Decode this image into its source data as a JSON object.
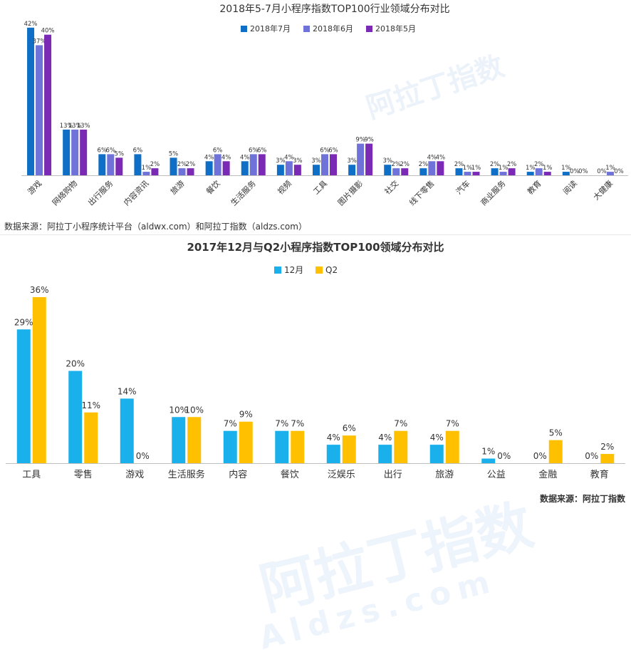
{
  "watermark": {
    "text": "阿拉丁指数",
    "domain": "Aldzs.com"
  },
  "chart_data": [
    {
      "type": "bar",
      "title": "2018年5-7月小程序指数TOP100行业领域分布对比",
      "categories": [
        "游戏",
        "网络购物",
        "出行服务",
        "内容资讯",
        "旅游",
        "餐饮",
        "生活服务",
        "视频",
        "工具",
        "图片摄影",
        "社交",
        "线下零售",
        "汽车",
        "商业服务",
        "教育",
        "阅读",
        "大健康"
      ],
      "series": [
        {
          "name": "2018年7月",
          "color": "#0f6fc6",
          "values": [
            42,
            13,
            6,
            6,
            5,
            4,
            4,
            3,
            3,
            3,
            3,
            2,
            2,
            2,
            1,
            1,
            0
          ]
        },
        {
          "name": "2018年6月",
          "color": "#6f72d9",
          "values": [
            37,
            13,
            6,
            1,
            2,
            6,
            6,
            4,
            6,
            9,
            2,
            4,
            1,
            1,
            2,
            0,
            1
          ]
        },
        {
          "name": "2018年5月",
          "color": "#7a2ab5",
          "values": [
            40,
            13,
            5,
            2,
            2,
            4,
            6,
            3,
            6,
            9,
            2,
            4,
            1,
            2,
            1,
            0,
            0
          ]
        }
      ],
      "value_suffix": "%",
      "legend_position": "top-center",
      "ylim": [
        0,
        45
      ],
      "grid": false,
      "source": "数据来源：阿拉丁小程序统计平台（aldwx.com）和阿拉丁指数（aldzs.com）"
    },
    {
      "type": "bar",
      "title": "2017年12月与Q2小程序指数TOP100领域分布对比",
      "categories": [
        "工具",
        "零售",
        "游戏",
        "生活服务",
        "内容",
        "餐饮",
        "泛娱乐",
        "出行",
        "旅游",
        "公益",
        "金融",
        "教育"
      ],
      "series": [
        {
          "name": "12月",
          "color": "#1ab0ec",
          "values": [
            29,
            20,
            14,
            10,
            7,
            7,
            4,
            4,
            4,
            1,
            0,
            0
          ]
        },
        {
          "name": "Q2",
          "color": "#ffc000",
          "values": [
            36,
            11,
            0,
            10,
            9,
            7,
            6,
            7,
            7,
            0,
            5,
            2
          ]
        }
      ],
      "value_suffix": "%",
      "legend_position": "top-center",
      "ylim": [
        0,
        38
      ],
      "grid": false,
      "source": "数据来源：阿拉丁指数"
    }
  ]
}
